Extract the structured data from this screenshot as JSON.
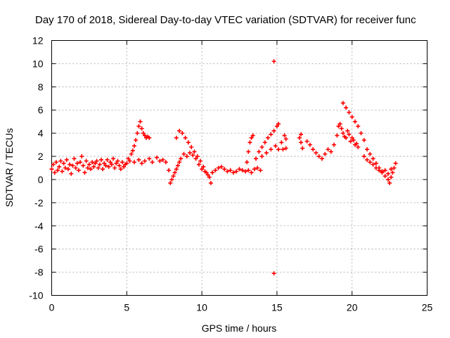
{
  "chart_data": {
    "type": "scatter",
    "title": "Day 170 of 2018, Sidereal Day-to-day VTEC variation (SDTVAR) for receiver func",
    "xlabel": "GPS time / hours",
    "ylabel": "SDTVAR / TECUs",
    "xlim": [
      0,
      25
    ],
    "ylim": [
      -10,
      12
    ],
    "xticks": [
      0,
      5,
      10,
      15,
      20,
      25
    ],
    "yticks": [
      -10,
      -8,
      -6,
      -4,
      -2,
      0,
      2,
      4,
      6,
      8,
      10,
      12
    ],
    "grid": true,
    "marker": "+",
    "series": [
      {
        "name": "SDTVAR",
        "color": "#ff0000",
        "points": [
          [
            0.0,
            0.9
          ],
          [
            0.1,
            1.3
          ],
          [
            0.2,
            0.6
          ],
          [
            0.3,
            1.5
          ],
          [
            0.4,
            0.8
          ],
          [
            0.5,
            1.1
          ],
          [
            0.6,
            1.6
          ],
          [
            0.7,
            0.7
          ],
          [
            0.8,
            1.4
          ],
          [
            0.9,
            1.0
          ],
          [
            1.0,
            1.7
          ],
          [
            1.1,
            0.9
          ],
          [
            1.2,
            1.3
          ],
          [
            1.3,
            0.5
          ],
          [
            1.4,
            1.2
          ],
          [
            1.5,
            1.8
          ],
          [
            1.6,
            1.0
          ],
          [
            1.7,
            1.4
          ],
          [
            1.8,
            0.8
          ],
          [
            1.9,
            1.5
          ],
          [
            2.0,
            2.0
          ],
          [
            2.1,
            1.2
          ],
          [
            2.2,
            0.6
          ],
          [
            2.3,
            1.6
          ],
          [
            2.4,
            1.0
          ],
          [
            2.5,
            1.3
          ],
          [
            2.6,
            0.9
          ],
          [
            2.7,
            1.5
          ],
          [
            2.8,
            1.1
          ],
          [
            2.9,
            1.4
          ],
          [
            3.0,
            1.6
          ],
          [
            3.1,
            1.0
          ],
          [
            3.2,
            1.3
          ],
          [
            3.3,
            1.7
          ],
          [
            3.4,
            0.9
          ],
          [
            3.5,
            1.4
          ],
          [
            3.6,
            1.2
          ],
          [
            3.7,
            1.7
          ],
          [
            3.8,
            1.1
          ],
          [
            3.9,
            1.5
          ],
          [
            4.0,
            1.3
          ],
          [
            4.1,
            1.8
          ],
          [
            4.2,
            1.0
          ],
          [
            4.3,
            1.4
          ],
          [
            4.4,
            1.6
          ],
          [
            4.5,
            1.2
          ],
          [
            4.6,
            0.9
          ],
          [
            4.7,
            1.5
          ],
          [
            4.8,
            1.1
          ],
          [
            4.9,
            1.3
          ],
          [
            5.0,
            1.4
          ],
          [
            5.1,
            1.8
          ],
          [
            5.2,
            1.6
          ],
          [
            5.3,
            2.2
          ],
          [
            5.4,
            2.5
          ],
          [
            5.5,
            2.9
          ],
          [
            5.6,
            3.4
          ],
          [
            5.7,
            4.0
          ],
          [
            5.8,
            4.6
          ],
          [
            5.9,
            5.0
          ],
          [
            6.0,
            4.4
          ],
          [
            6.1,
            4.0
          ],
          [
            6.2,
            3.8
          ],
          [
            6.3,
            3.6
          ],
          [
            6.4,
            3.7
          ],
          [
            6.5,
            3.6
          ],
          [
            5.5,
            1.5
          ],
          [
            5.8,
            1.7
          ],
          [
            6.0,
            1.4
          ],
          [
            6.2,
            1.6
          ],
          [
            6.5,
            1.8
          ],
          [
            6.7,
            1.5
          ],
          [
            7.0,
            1.9
          ],
          [
            7.2,
            1.6
          ],
          [
            7.4,
            1.7
          ],
          [
            7.6,
            1.5
          ],
          [
            7.8,
            0.8
          ],
          [
            7.9,
            -0.3
          ],
          [
            8.0,
            0.0
          ],
          [
            8.1,
            0.3
          ],
          [
            8.2,
            0.6
          ],
          [
            8.3,
            0.9
          ],
          [
            8.4,
            1.2
          ],
          [
            8.5,
            1.5
          ],
          [
            8.3,
            3.6
          ],
          [
            8.5,
            4.2
          ],
          [
            8.7,
            4.0
          ],
          [
            8.9,
            3.6
          ],
          [
            9.1,
            3.2
          ],
          [
            9.3,
            2.8
          ],
          [
            9.5,
            2.4
          ],
          [
            9.7,
            2.0
          ],
          [
            9.9,
            1.6
          ],
          [
            10.1,
            1.1
          ],
          [
            10.3,
            0.6
          ],
          [
            10.5,
            0.2
          ],
          [
            10.6,
            -0.3
          ],
          [
            8.6,
            1.8
          ],
          [
            8.8,
            2.2
          ],
          [
            9.0,
            2.0
          ],
          [
            9.2,
            2.3
          ],
          [
            9.4,
            2.1
          ],
          [
            9.6,
            1.8
          ],
          [
            9.8,
            1.3
          ],
          [
            10.0,
            0.9
          ],
          [
            10.2,
            0.7
          ],
          [
            10.4,
            0.4
          ],
          [
            10.7,
            0.6
          ],
          [
            10.9,
            0.8
          ],
          [
            11.1,
            1.0
          ],
          [
            11.3,
            1.1
          ],
          [
            11.5,
            0.9
          ],
          [
            11.7,
            0.7
          ],
          [
            11.9,
            0.8
          ],
          [
            12.1,
            0.6
          ],
          [
            12.3,
            0.7
          ],
          [
            12.5,
            0.9
          ],
          [
            12.7,
            0.8
          ],
          [
            12.9,
            0.7
          ],
          [
            13.1,
            0.8
          ],
          [
            13.3,
            0.6
          ],
          [
            13.5,
            0.9
          ],
          [
            13.7,
            1.0
          ],
          [
            13.9,
            0.8
          ],
          [
            13.0,
            1.5
          ],
          [
            13.1,
            2.4
          ],
          [
            13.2,
            3.2
          ],
          [
            13.3,
            3.6
          ],
          [
            13.4,
            3.8
          ],
          [
            13.6,
            1.8
          ],
          [
            13.8,
            2.4
          ],
          [
            14.0,
            2.8
          ],
          [
            14.2,
            3.2
          ],
          [
            14.4,
            3.6
          ],
          [
            14.6,
            3.9
          ],
          [
            14.8,
            4.2
          ],
          [
            15.0,
            4.6
          ],
          [
            15.1,
            4.8
          ],
          [
            14.0,
            2.0
          ],
          [
            14.3,
            2.3
          ],
          [
            14.6,
            2.6
          ],
          [
            14.9,
            2.9
          ],
          [
            15.1,
            2.6
          ],
          [
            15.3,
            3.2
          ],
          [
            15.5,
            3.8
          ],
          [
            15.6,
            3.5
          ],
          [
            15.4,
            2.6
          ],
          [
            15.6,
            2.7
          ],
          [
            14.8,
            10.2
          ],
          [
            14.8,
            -8.1
          ],
          [
            16.5,
            3.6
          ],
          [
            16.6,
            3.2
          ],
          [
            16.6,
            3.9
          ],
          [
            16.7,
            2.7
          ],
          [
            17.0,
            3.3
          ],
          [
            17.2,
            3.0
          ],
          [
            17.4,
            2.6
          ],
          [
            17.6,
            2.3
          ],
          [
            17.8,
            2.0
          ],
          [
            18.0,
            1.8
          ],
          [
            18.2,
            2.2
          ],
          [
            18.4,
            2.6
          ],
          [
            18.6,
            2.4
          ],
          [
            18.8,
            3.0
          ],
          [
            19.0,
            3.8
          ],
          [
            19.1,
            4.6
          ],
          [
            19.2,
            4.8
          ],
          [
            19.3,
            4.4
          ],
          [
            19.4,
            4.0
          ],
          [
            19.5,
            3.7
          ],
          [
            19.6,
            3.6
          ],
          [
            19.7,
            4.2
          ],
          [
            19.8,
            3.9
          ],
          [
            19.9,
            3.3
          ],
          [
            20.0,
            3.6
          ],
          [
            20.1,
            3.4
          ],
          [
            20.2,
            3.0
          ],
          [
            20.3,
            3.1
          ],
          [
            20.4,
            2.8
          ],
          [
            19.4,
            6.6
          ],
          [
            19.6,
            6.2
          ],
          [
            19.8,
            5.8
          ],
          [
            20.0,
            5.4
          ],
          [
            20.2,
            5.0
          ],
          [
            20.4,
            4.6
          ],
          [
            20.6,
            4.0
          ],
          [
            20.8,
            3.4
          ],
          [
            21.0,
            2.6
          ],
          [
            21.2,
            2.2
          ],
          [
            21.4,
            1.8
          ],
          [
            21.6,
            1.4
          ],
          [
            21.8,
            1.0
          ],
          [
            22.0,
            0.6
          ],
          [
            22.2,
            0.3
          ],
          [
            22.4,
            0.0
          ],
          [
            22.5,
            -0.3
          ],
          [
            22.6,
            0.2
          ],
          [
            22.7,
            0.6
          ],
          [
            22.8,
            1.0
          ],
          [
            22.9,
            1.4
          ],
          [
            20.8,
            2.0
          ],
          [
            21.0,
            1.7
          ],
          [
            21.2,
            1.5
          ],
          [
            21.4,
            1.3
          ],
          [
            21.6,
            1.0
          ],
          [
            21.8,
            0.8
          ],
          [
            22.0,
            0.7
          ],
          [
            22.2,
            0.8
          ],
          [
            22.4,
            0.5
          ],
          [
            22.6,
            0.9
          ]
        ]
      }
    ]
  }
}
